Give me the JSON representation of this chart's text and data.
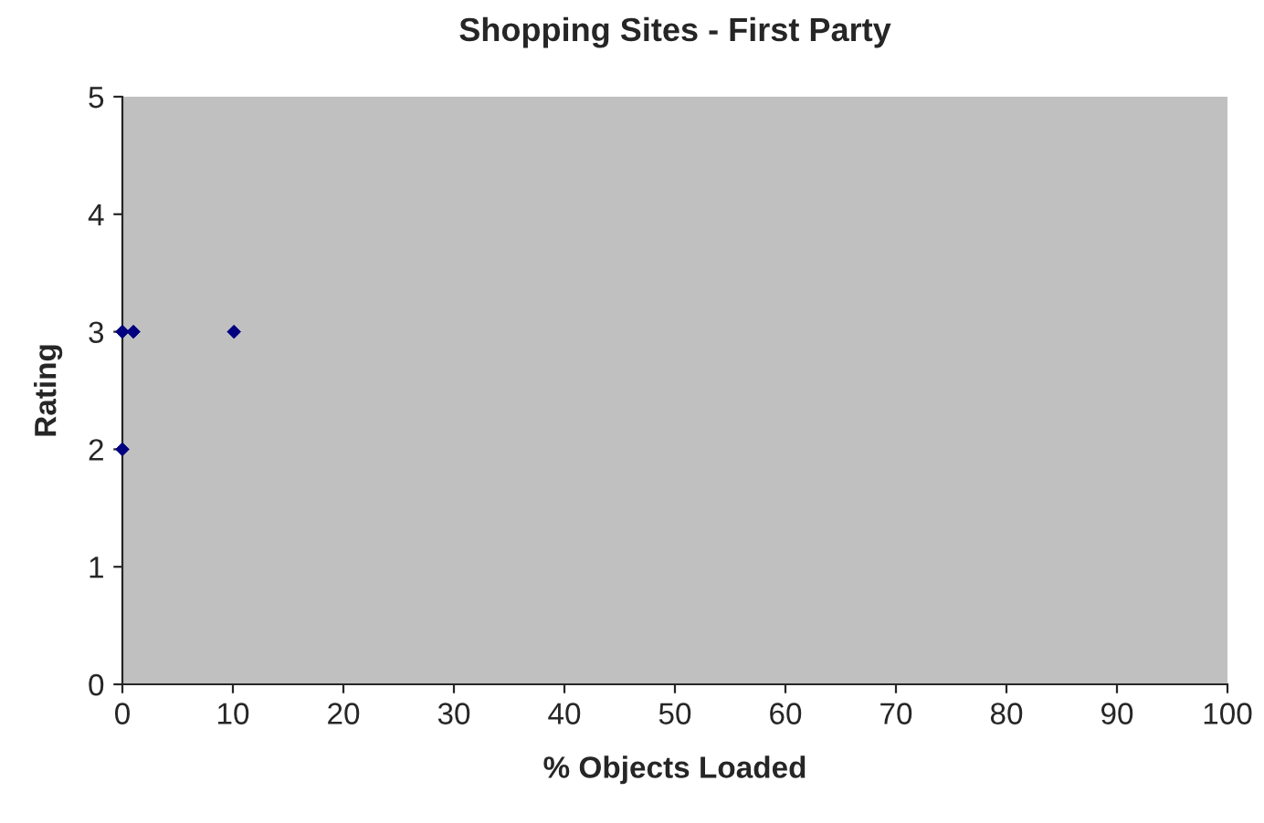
{
  "chart_data": {
    "type": "scatter",
    "title": "Shopping Sites - First Party",
    "xlabel": "% Objects Loaded",
    "ylabel": "Rating",
    "series": [
      {
        "color": "#000080",
        "x": [
          0,
          1,
          10.1,
          0
        ],
        "values": [
          3,
          3,
          3,
          2
        ]
      }
    ],
    "xlim": [
      0,
      100
    ],
    "xticks": [
      0,
      10,
      20,
      30,
      40,
      50,
      60,
      70,
      80,
      90,
      100
    ],
    "ylim": [
      0,
      5
    ],
    "yticks": [
      0,
      1,
      2,
      3,
      4,
      5
    ],
    "grid": false,
    "legend": false,
    "marker": "diamond"
  }
}
